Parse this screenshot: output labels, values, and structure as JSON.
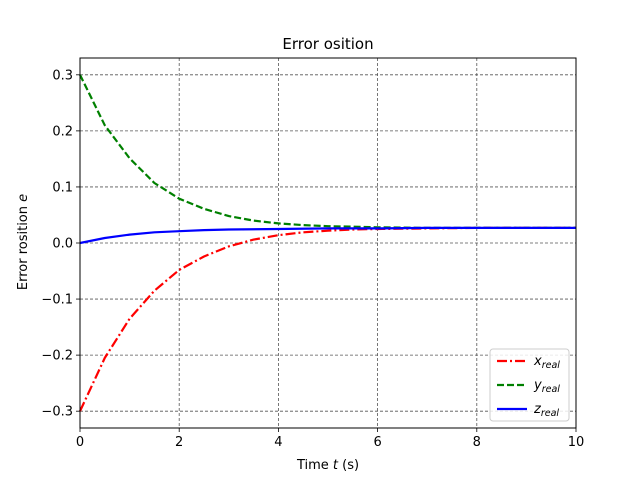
{
  "chart_data": {
    "type": "line",
    "title": "Error osition",
    "xlabel_prefix": "Time ",
    "xlabel_var": "t",
    "xlabel_suffix": " (s)",
    "ylabel_prefix": "Error rosition ",
    "ylabel_var": "e",
    "xlim": [
      0,
      10
    ],
    "ylim": [
      -0.33,
      0.33
    ],
    "xticks": [
      0,
      2,
      4,
      6,
      8,
      10
    ],
    "xtick_labels": [
      "0",
      "2",
      "4",
      "6",
      "8",
      "10"
    ],
    "yticks": [
      -0.3,
      -0.2,
      -0.1,
      0.0,
      0.1,
      0.2,
      0.3
    ],
    "ytick_labels": [
      "−0.3",
      "−0.2",
      "−0.1",
      "0.0",
      "0.1",
      "0.2",
      "0.3"
    ],
    "grid": true,
    "legend_position": "lower-right",
    "series": [
      {
        "name_base": "x",
        "name_sub": "real",
        "color": "#ff0000",
        "style": "dashdot",
        "x": [
          0,
          0.5,
          1,
          1.5,
          2,
          2.5,
          3,
          3.5,
          4,
          4.5,
          5,
          5.5,
          6,
          7,
          8,
          9,
          10
        ],
        "y": [
          -0.3,
          -0.205,
          -0.135,
          -0.085,
          -0.048,
          -0.024,
          -0.006,
          0.006,
          0.014,
          0.019,
          0.022,
          0.024,
          0.025,
          0.026,
          0.027,
          0.027,
          0.027
        ]
      },
      {
        "name_base": "y",
        "name_sub": "real",
        "color": "#008000",
        "style": "dashed",
        "x": [
          0,
          0.5,
          1,
          1.5,
          2,
          2.5,
          3,
          3.5,
          4,
          4.5,
          5,
          5.5,
          6,
          7,
          8,
          9,
          10
        ],
        "y": [
          0.3,
          0.21,
          0.151,
          0.107,
          0.079,
          0.061,
          0.048,
          0.04,
          0.035,
          0.032,
          0.03,
          0.029,
          0.028,
          0.027,
          0.027,
          0.027,
          0.027
        ]
      },
      {
        "name_base": "z",
        "name_sub": "real",
        "color": "#0000ff",
        "style": "solid",
        "x": [
          0,
          0.5,
          1,
          1.5,
          2,
          2.5,
          3,
          4,
          5,
          6,
          7,
          8,
          9,
          10
        ],
        "y": [
          0.0,
          0.009,
          0.015,
          0.019,
          0.021,
          0.023,
          0.024,
          0.025,
          0.026,
          0.026,
          0.027,
          0.027,
          0.027,
          0.027
        ]
      }
    ]
  }
}
